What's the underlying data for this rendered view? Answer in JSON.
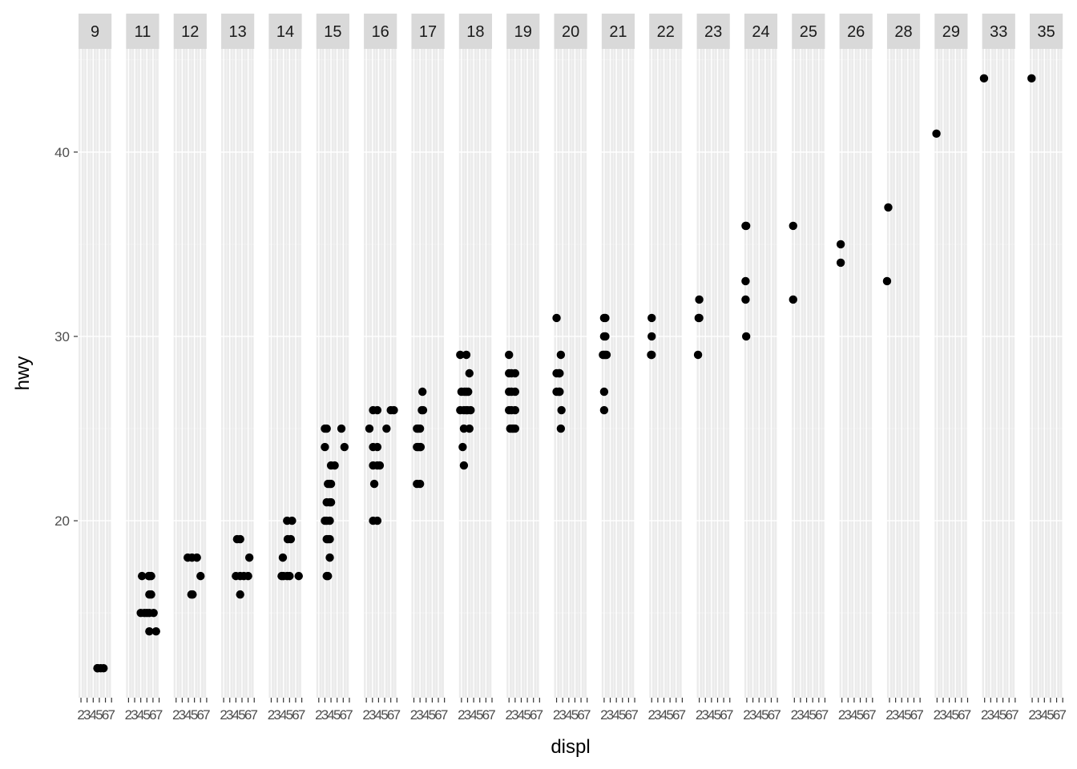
{
  "chart_data": {
    "type": "scatter",
    "facet_by": "cty",
    "xlabel": "displ",
    "ylabel": "hwy",
    "xlim": [
      1.6,
      7.0
    ],
    "ylim": [
      10.4,
      45.6
    ],
    "x_ticks": [
      2,
      3,
      4,
      5,
      6,
      7
    ],
    "y_ticks": [
      20,
      30,
      40
    ],
    "grid": true,
    "panels": [
      {
        "label": "9",
        "points": [
          [
            4.7,
            12
          ],
          [
            4.7,
            12
          ],
          [
            4.7,
            12
          ],
          [
            5.2,
            12
          ],
          [
            5.7,
            12
          ]
        ]
      },
      {
        "label": "11",
        "points": [
          [
            4.2,
            17
          ],
          [
            5.3,
            17
          ],
          [
            5.4,
            17
          ],
          [
            5.7,
            17
          ],
          [
            4.0,
            15
          ],
          [
            4.6,
            15
          ],
          [
            5.0,
            15
          ],
          [
            5.4,
            15
          ],
          [
            6.1,
            15
          ],
          [
            5.4,
            16
          ],
          [
            5.7,
            16
          ],
          [
            5.4,
            14
          ],
          [
            6.5,
            14
          ]
        ]
      },
      {
        "label": "12",
        "points": [
          [
            3.9,
            18
          ],
          [
            4.6,
            18
          ],
          [
            5.4,
            18
          ],
          [
            6.0,
            17
          ],
          [
            4.7,
            16
          ],
          [
            4.5,
            16
          ]
        ]
      },
      {
        "label": "13",
        "points": [
          [
            4.2,
            19
          ],
          [
            4.7,
            19
          ],
          [
            4.0,
            17
          ],
          [
            4.7,
            17
          ],
          [
            5.3,
            17
          ],
          [
            6.0,
            17
          ],
          [
            4.7,
            16
          ],
          [
            6.2,
            18
          ]
        ]
      },
      {
        "label": "14",
        "points": [
          [
            4.6,
            20
          ],
          [
            5.4,
            20
          ],
          [
            3.9,
            18
          ],
          [
            4.7,
            19
          ],
          [
            5.2,
            19
          ],
          [
            3.7,
            17
          ],
          [
            4.0,
            17
          ],
          [
            4.6,
            17
          ],
          [
            5.0,
            17
          ],
          [
            6.5,
            17
          ]
        ]
      },
      {
        "label": "15",
        "points": [
          [
            3.0,
            25
          ],
          [
            3.3,
            25
          ],
          [
            3.0,
            24
          ],
          [
            3.0,
            20
          ],
          [
            3.3,
            20
          ],
          [
            3.8,
            20
          ],
          [
            3.5,
            22
          ],
          [
            3.8,
            22
          ],
          [
            4.0,
            22
          ],
          [
            3.3,
            21
          ],
          [
            3.8,
            21
          ],
          [
            4.0,
            21
          ],
          [
            4.0,
            23
          ],
          [
            4.6,
            23
          ],
          [
            5.7,
            25
          ],
          [
            3.3,
            19
          ],
          [
            3.5,
            19
          ],
          [
            3.8,
            19
          ],
          [
            3.5,
            17
          ],
          [
            3.3,
            17
          ],
          [
            3.8,
            18
          ],
          [
            6.2,
            24
          ]
        ]
      },
      {
        "label": "16",
        "points": [
          [
            2.5,
            25
          ],
          [
            3.1,
            26
          ],
          [
            3.8,
            26
          ],
          [
            6.0,
            26
          ],
          [
            6.5,
            26
          ],
          [
            3.1,
            24
          ],
          [
            3.8,
            24
          ],
          [
            3.1,
            23
          ],
          [
            3.8,
            23
          ],
          [
            4.2,
            23
          ],
          [
            3.3,
            22
          ],
          [
            3.1,
            20
          ],
          [
            3.8,
            20
          ],
          [
            5.3,
            25
          ]
        ]
      },
      {
        "label": "17",
        "points": [
          [
            2.5,
            25
          ],
          [
            2.7,
            25
          ],
          [
            3.0,
            25
          ],
          [
            2.5,
            24
          ],
          [
            2.7,
            24
          ],
          [
            3.0,
            24
          ],
          [
            3.1,
            24
          ],
          [
            3.3,
            26
          ],
          [
            3.5,
            26
          ],
          [
            3.4,
            27
          ],
          [
            2.5,
            22
          ],
          [
            3.0,
            22
          ]
        ]
      },
      {
        "label": "18",
        "points": [
          [
            1.8,
            29
          ],
          [
            2.8,
            29
          ],
          [
            2.0,
            27
          ],
          [
            2.5,
            27
          ],
          [
            2.8,
            27
          ],
          [
            3.1,
            27
          ],
          [
            1.8,
            26
          ],
          [
            2.4,
            26
          ],
          [
            2.8,
            26
          ],
          [
            3.0,
            26
          ],
          [
            3.5,
            26
          ],
          [
            3.3,
            28
          ],
          [
            2.4,
            25
          ],
          [
            3.3,
            25
          ],
          [
            2.2,
            24
          ],
          [
            2.4,
            23
          ]
        ]
      },
      {
        "label": "19",
        "points": [
          [
            2.0,
            29
          ],
          [
            2.0,
            28
          ],
          [
            2.4,
            28
          ],
          [
            3.0,
            28
          ],
          [
            2.0,
            27
          ],
          [
            2.4,
            27
          ],
          [
            3.0,
            27
          ],
          [
            2.0,
            26
          ],
          [
            2.4,
            26
          ],
          [
            3.0,
            26
          ],
          [
            2.2,
            25
          ],
          [
            2.5,
            25
          ],
          [
            2.7,
            25
          ],
          [
            3.0,
            25
          ]
        ]
      },
      {
        "label": "20",
        "points": [
          [
            2.0,
            31
          ],
          [
            2.0,
            28
          ],
          [
            2.4,
            28
          ],
          [
            2.5,
            28
          ],
          [
            2.0,
            27
          ],
          [
            2.4,
            27
          ],
          [
            2.5,
            27
          ],
          [
            2.7,
            29
          ],
          [
            2.8,
            26
          ],
          [
            2.7,
            25
          ]
        ]
      },
      {
        "label": "21",
        "points": [
          [
            2.0,
            31
          ],
          [
            2.2,
            31
          ],
          [
            2.0,
            30
          ],
          [
            2.2,
            30
          ],
          [
            1.8,
            29
          ],
          [
            2.0,
            29
          ],
          [
            2.2,
            29
          ],
          [
            2.4,
            29
          ],
          [
            2.0,
            27
          ],
          [
            2.0,
            26
          ]
        ]
      },
      {
        "label": "22",
        "points": [
          [
            2.0,
            31
          ],
          [
            1.9,
            29
          ],
          [
            2.0,
            29
          ],
          [
            2.0,
            30
          ]
        ]
      },
      {
        "label": "23",
        "points": [
          [
            2.0,
            32
          ],
          [
            1.9,
            31
          ],
          [
            2.0,
            31
          ],
          [
            1.8,
            29
          ]
        ]
      },
      {
        "label": "24",
        "points": [
          [
            1.8,
            36
          ],
          [
            1.9,
            36
          ],
          [
            1.8,
            33
          ],
          [
            1.8,
            32
          ],
          [
            1.9,
            30
          ]
        ]
      },
      {
        "label": "25",
        "points": [
          [
            1.8,
            36
          ],
          [
            1.8,
            32
          ]
        ]
      },
      {
        "label": "26",
        "points": [
          [
            1.8,
            35
          ],
          [
            1.8,
            34
          ]
        ]
      },
      {
        "label": "28",
        "points": [
          [
            1.8,
            37
          ],
          [
            1.6,
            33
          ]
        ]
      },
      {
        "label": "29",
        "points": [
          [
            1.9,
            41
          ]
        ]
      },
      {
        "label": "33",
        "points": [
          [
            1.9,
            44
          ]
        ]
      },
      {
        "label": "35",
        "points": [
          [
            1.9,
            44
          ]
        ]
      }
    ]
  }
}
